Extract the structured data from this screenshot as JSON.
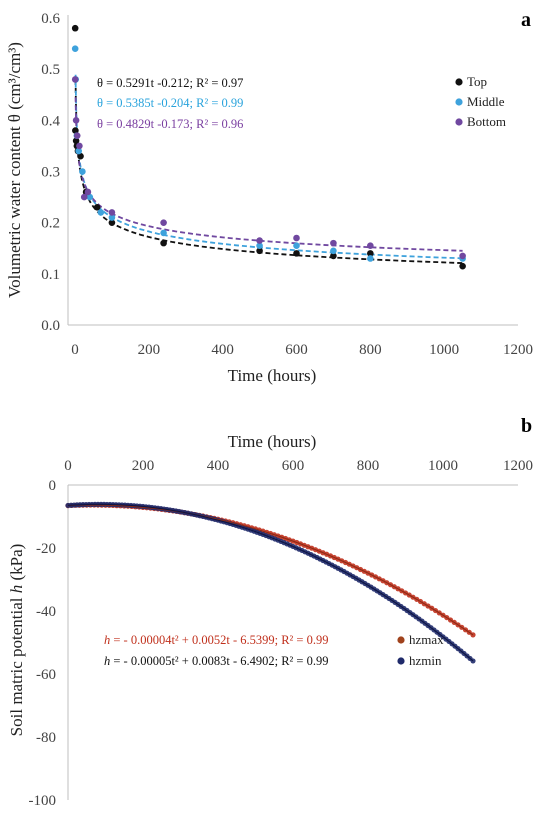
{
  "colors": {
    "top": "#111111",
    "middle": "#3ea2dc",
    "bottom": "#7048a0",
    "middle_text": "#29a3dc",
    "bottom_text": "#7a3fa0",
    "hzmax": "#c0301c",
    "hzmin": "#1f2a6a",
    "hzmax_text": "#c0301c",
    "hzmin_text": "#111111",
    "axis": "#bfbfbf"
  },
  "chart_data": [
    {
      "type": "scatter",
      "panel": "a",
      "xlabel": "Time (hours)",
      "ylabel": "Volumetric water content θ (cm³/cm³)",
      "xlim": [
        0,
        1200
      ],
      "ylim": [
        0,
        0.6
      ],
      "x_ticks": [
        0,
        200,
        400,
        600,
        800,
        1000,
        1200
      ],
      "y_ticks": [
        0.0,
        0.1,
        0.2,
        0.3,
        0.4,
        0.5,
        0.6
      ],
      "x_tick_labels": [
        "0",
        "200",
        "400",
        "600",
        "800",
        "1000",
        "1200"
      ],
      "y_tick_labels": [
        "0.0",
        "0.1",
        "0.2",
        "0.3",
        "0.4",
        "0.5",
        "0.6"
      ],
      "legend_position": "right",
      "series": [
        {
          "name": "Top",
          "equation": "θ = 0.5291t -0.212; R² = 0.97",
          "fit": {
            "a": 0.5291,
            "b": -0.212
          },
          "points": [
            [
              0.5,
              0.58
            ],
            [
              1,
              0.38
            ],
            [
              3,
              0.36
            ],
            [
              5,
              0.35
            ],
            [
              8,
              0.34
            ],
            [
              15,
              0.33
            ],
            [
              30,
              0.26
            ],
            [
              60,
              0.23
            ],
            [
              100,
              0.2
            ],
            [
              240,
              0.16
            ],
            [
              500,
              0.145
            ],
            [
              600,
              0.14
            ],
            [
              700,
              0.135
            ],
            [
              800,
              0.14
            ],
            [
              1050,
              0.115
            ]
          ]
        },
        {
          "name": "Middle",
          "equation": "θ = 0.5385t -0.204; R² = 0.99",
          "fit": {
            "a": 0.5385,
            "b": -0.204
          },
          "points": [
            [
              0.5,
              0.54
            ],
            [
              2,
              0.48
            ],
            [
              5,
              0.37
            ],
            [
              10,
              0.34
            ],
            [
              20,
              0.3
            ],
            [
              40,
              0.25
            ],
            [
              70,
              0.22
            ],
            [
              100,
              0.21
            ],
            [
              240,
              0.18
            ],
            [
              500,
              0.155
            ],
            [
              600,
              0.155
            ],
            [
              700,
              0.145
            ],
            [
              800,
              0.13
            ],
            [
              1050,
              0.13
            ]
          ]
        },
        {
          "name": "Bottom",
          "equation": "θ = 0.4829t -0.173; R² = 0.96",
          "fit": {
            "a": 0.4829,
            "b": -0.173
          },
          "points": [
            [
              0.5,
              0.48
            ],
            [
              3,
              0.4
            ],
            [
              6,
              0.37
            ],
            [
              12,
              0.35
            ],
            [
              25,
              0.25
            ],
            [
              35,
              0.26
            ],
            [
              100,
              0.22
            ],
            [
              240,
              0.2
            ],
            [
              500,
              0.165
            ],
            [
              600,
              0.17
            ],
            [
              700,
              0.16
            ],
            [
              800,
              0.155
            ],
            [
              1050,
              0.135
            ]
          ]
        }
      ]
    },
    {
      "type": "scatter",
      "panel": "b",
      "xlabel": "Time (hours)",
      "ylabel_prefix": "Soil matric potential ",
      "ylabel_var": "h",
      "ylabel_suffix": " (kPa)",
      "xlim": [
        0,
        1200
      ],
      "ylim": [
        -100,
        0
      ],
      "x_ticks": [
        0,
        200,
        400,
        600,
        800,
        1000,
        1200
      ],
      "y_ticks": [
        0,
        -20,
        -40,
        -60,
        -80,
        -100
      ],
      "x_tick_labels": [
        "0",
        "200",
        "400",
        "600",
        "800",
        "1000",
        "1200"
      ],
      "y_tick_labels": [
        "0",
        "-20",
        "-40",
        "-60",
        "-80",
        "-100"
      ],
      "x_axis_position": "top",
      "legend_position": "lower-right",
      "series": [
        {
          "name": "hzmax",
          "equation_var": "h",
          "equation_rest": " = - 0.00004t² + 0.0052t - 6.5399; R² = 0.99",
          "fit": {
            "a": -4e-05,
            "b": 0.0052,
            "c": -6.5399
          },
          "x_range": [
            0,
            1080
          ],
          "sample_every": 10
        },
        {
          "name": "hzmin",
          "equation_var": "h",
          "equation_rest": " = - 0.00005t² + 0.0083t - 6.4902; R² = 0.99",
          "fit": {
            "a": -5e-05,
            "b": 0.0083,
            "c": -6.4902
          },
          "x_range": [
            0,
            1080
          ],
          "sample_every": 8
        }
      ]
    }
  ],
  "panel_labels": {
    "a": "a",
    "b": "b"
  }
}
